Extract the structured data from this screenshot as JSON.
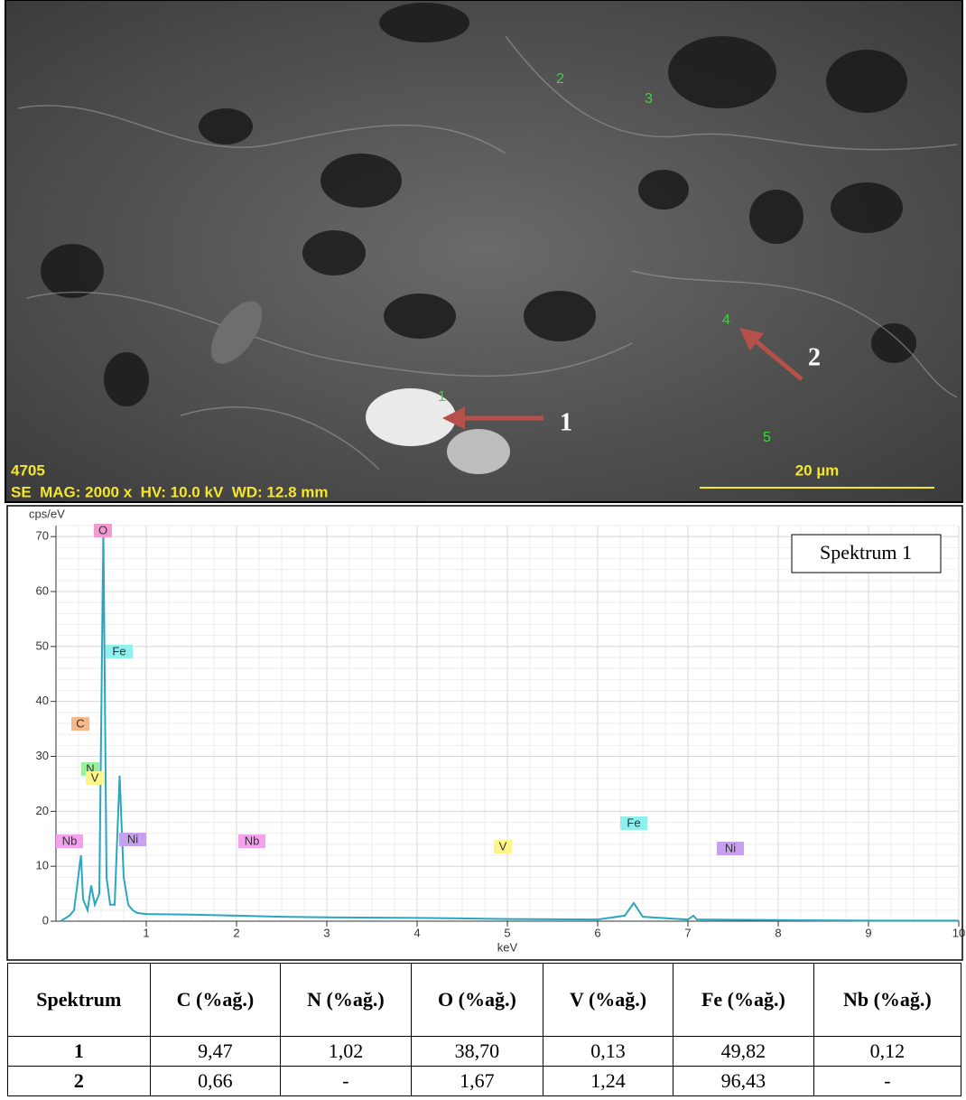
{
  "sem_image": {
    "sample_id": "4705",
    "info": "SE  MAG: 2000 x  HV: 10.0 kV  WD: 12.8 mm",
    "scale_bar": "20 µm",
    "points": [
      "1",
      "2",
      "3",
      "4",
      "5"
    ],
    "arrows": [
      "1",
      "2"
    ]
  },
  "chart_data": {
    "type": "line",
    "y_label": "cps/eV",
    "x_label": "keV",
    "x": [
      0.05,
      0.15,
      0.2,
      0.277,
      0.3,
      0.35,
      0.39,
      0.43,
      0.48,
      0.525,
      0.56,
      0.6,
      0.65,
      0.705,
      0.75,
      0.8,
      0.85,
      0.9,
      1.0,
      1.5,
      2.0,
      2.5,
      3.0,
      4.0,
      5.0,
      6.0,
      6.3,
      6.4,
      6.5,
      7.0,
      7.06,
      7.1,
      8.0,
      9.0,
      10.0
    ],
    "series": [
      {
        "name": "Spektrum 1",
        "color": "#2aa7c0",
        "values": [
          0,
          1,
          2,
          12,
          4,
          2,
          6.5,
          3,
          5,
          71,
          8,
          3,
          3,
          26.5,
          8,
          3,
          2,
          1.5,
          1.3,
          1.2,
          1,
          0.8,
          0.7,
          0.6,
          0.4,
          0.3,
          1,
          3.3,
          0.8,
          0.3,
          1,
          0.3,
          0.2,
          0.1,
          0.1
        ]
      }
    ],
    "xlim": [
      0,
      10
    ],
    "xticks": [
      1,
      2,
      3,
      4,
      5,
      6,
      7,
      8,
      9,
      10
    ],
    "ylim": [
      0,
      72
    ],
    "yticks": [
      0,
      10,
      20,
      30,
      40,
      50,
      60,
      70
    ],
    "grid": true,
    "peak_labels": [
      {
        "label": "O",
        "x": 0.52,
        "color": "#f39bd0"
      },
      {
        "label": "Fe",
        "x": 0.7,
        "color": "#8ff0f0"
      },
      {
        "label": "C",
        "x": 0.27,
        "color": "#f5b98a"
      },
      {
        "label": "N",
        "x": 0.38,
        "color": "#99f099"
      },
      {
        "label": "V",
        "x": 0.43,
        "color": "#fbf58a"
      },
      {
        "label": "Nb",
        "x": 0.15,
        "color": "#f3a0ee"
      },
      {
        "label": "Ni",
        "x": 0.85,
        "color": "#c8a0f0"
      },
      {
        "label": "Nb",
        "x": 2.17,
        "color": "#f3a0ee"
      },
      {
        "label": "V",
        "x": 4.95,
        "color": "#fbf58a"
      },
      {
        "label": "Fe",
        "x": 6.4,
        "color": "#8ff0f0"
      },
      {
        "label": "Ni",
        "x": 7.47,
        "color": "#c8a0f0"
      }
    ]
  },
  "table": {
    "header": [
      "Spektrum",
      "C (%ağ.)",
      "N (%ağ.)",
      "O (%ağ.)",
      "V (%ağ.)",
      "Fe (%ağ.)",
      "Nb (%ağ.)"
    ],
    "rows": [
      [
        "1",
        "9,47",
        "1,02",
        "38,70",
        "0,13",
        "49,82",
        "0,12"
      ],
      [
        "2",
        "0,66",
        "-",
        "1,67",
        "1,24",
        "96,43",
        "-"
      ]
    ]
  }
}
